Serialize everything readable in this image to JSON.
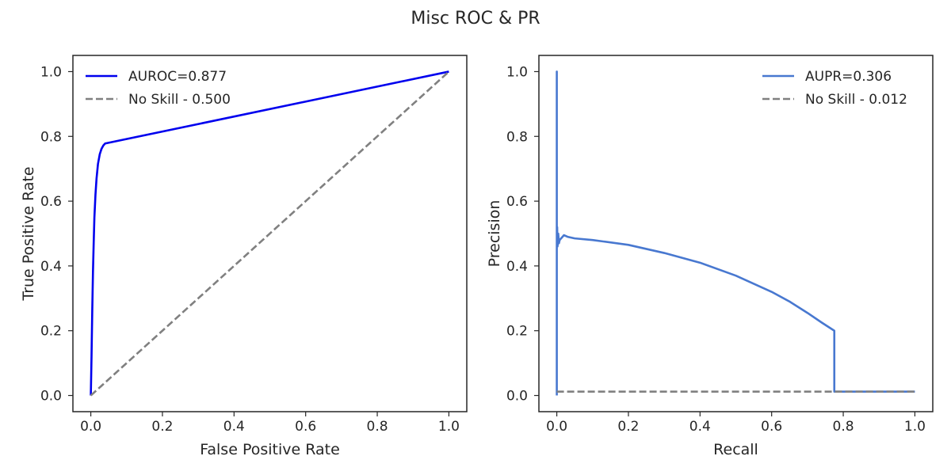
{
  "suptitle": "Misc ROC & PR",
  "colors": {
    "roc_curve": "#0000ee",
    "pr_curve": "#4878d0",
    "no_skill": "#808080",
    "axes": "#262626"
  },
  "chart_data": [
    {
      "type": "line",
      "title": "",
      "xlabel": "False Positive Rate",
      "ylabel": "True Positive Rate",
      "xlim": [
        -0.05,
        1.05
      ],
      "ylim": [
        -0.05,
        1.05
      ],
      "xticks": [
        "0.0",
        "0.2",
        "0.4",
        "0.6",
        "0.8",
        "1.0"
      ],
      "yticks": [
        "0.0",
        "0.2",
        "0.4",
        "0.6",
        "0.8",
        "1.0"
      ],
      "legend_position": "upper-left",
      "series": [
        {
          "name": "AUROC=0.877",
          "style": "solid",
          "color": "#0000ee",
          "x": [
            0.0,
            0.002,
            0.004,
            0.006,
            0.008,
            0.01,
            0.013,
            0.016,
            0.02,
            0.025,
            0.03,
            0.035,
            0.04,
            1.0
          ],
          "y": [
            0.0,
            0.12,
            0.26,
            0.38,
            0.47,
            0.55,
            0.62,
            0.67,
            0.715,
            0.745,
            0.762,
            0.772,
            0.778,
            1.0
          ]
        },
        {
          "name": "No Skill - 0.500",
          "style": "dashed",
          "color": "#808080",
          "x": [
            0.0,
            1.0
          ],
          "y": [
            0.0,
            1.0
          ]
        }
      ]
    },
    {
      "type": "line",
      "title": "",
      "xlabel": "Recall",
      "ylabel": "Precision",
      "xlim": [
        -0.05,
        1.05
      ],
      "ylim": [
        -0.05,
        1.05
      ],
      "xticks": [
        "0.0",
        "0.2",
        "0.4",
        "0.6",
        "0.8",
        "1.0"
      ],
      "yticks": [
        "0.0",
        "0.2",
        "0.4",
        "0.6",
        "0.8",
        "1.0"
      ],
      "legend_position": "upper-right",
      "series": [
        {
          "name": "AUPR=0.306",
          "style": "solid",
          "color": "#4878d0",
          "x": [
            0.0,
            0.0,
            0.0,
            0.001,
            0.002,
            0.003,
            0.004,
            0.006,
            0.008,
            0.012,
            0.016,
            0.02,
            0.03,
            0.05,
            0.1,
            0.2,
            0.3,
            0.4,
            0.5,
            0.6,
            0.65,
            0.7,
            0.74,
            0.775,
            0.775,
            1.0
          ],
          "y": [
            0.0,
            1.0,
            0.45,
            0.52,
            0.46,
            0.47,
            0.5,
            0.47,
            0.48,
            0.485,
            0.49,
            0.495,
            0.49,
            0.485,
            0.48,
            0.465,
            0.44,
            0.41,
            0.37,
            0.32,
            0.29,
            0.255,
            0.225,
            0.2,
            0.012,
            0.012
          ]
        },
        {
          "name": "No Skill - 0.012",
          "style": "dashed",
          "color": "#808080",
          "x": [
            0.0,
            1.0
          ],
          "y": [
            0.012,
            0.012
          ]
        }
      ]
    }
  ]
}
